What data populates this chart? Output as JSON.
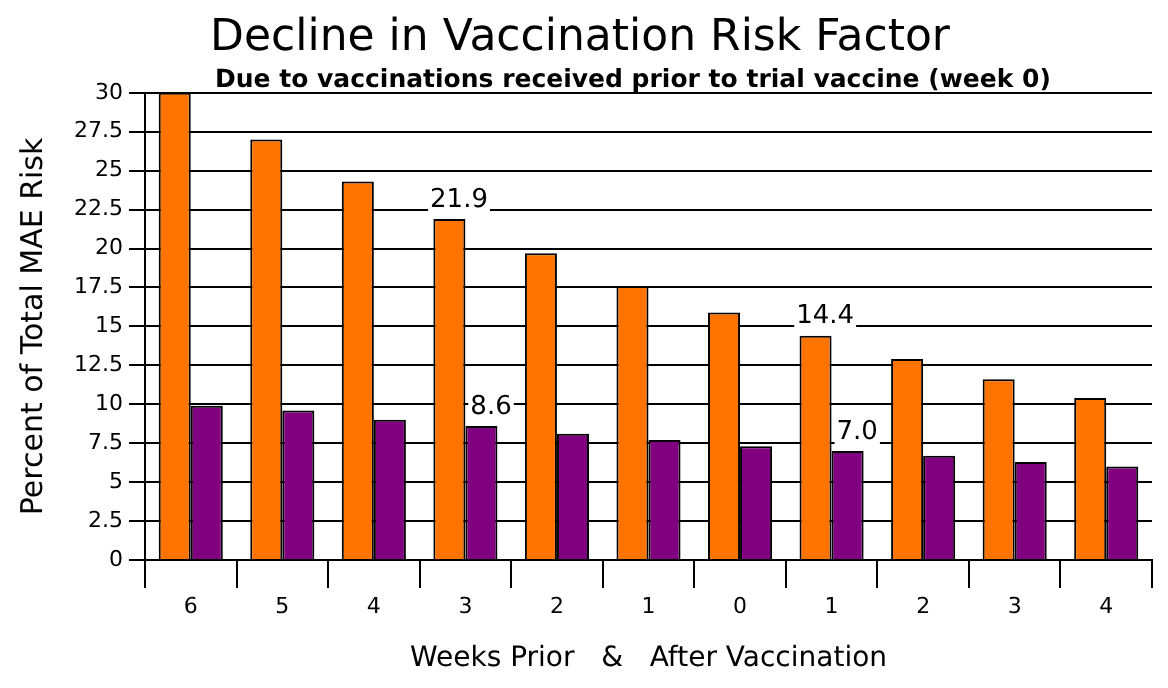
{
  "chart_data": {
    "type": "bar",
    "title": "Decline in Vaccination Risk Factor",
    "subtitle": "Due to vaccinations received prior to trial vaccine (week 0)",
    "xlabel": "Weeks Prior   &   After Vaccination",
    "ylabel": "Percent of Total MAE Risk",
    "categories": [
      "6",
      "5",
      "4",
      "3",
      "2",
      "1",
      "0",
      "1",
      "2",
      "3",
      "4"
    ],
    "series": [
      {
        "color": "#ff7300",
        "values": [
          30,
          27.0,
          24.3,
          21.9,
          19.7,
          17.6,
          15.9,
          14.4,
          12.9,
          11.6,
          10.4
        ],
        "value_labels": [
          null,
          null,
          null,
          "21.9",
          null,
          null,
          null,
          "14.4",
          null,
          null,
          null
        ]
      },
      {
        "color": "#800080",
        "values": [
          9.9,
          9.6,
          9.0,
          8.6,
          8.1,
          7.7,
          7.3,
          7.0,
          6.7,
          6.3,
          6.0
        ],
        "value_labels": [
          null,
          null,
          null,
          "8.6",
          null,
          null,
          null,
          "7.0",
          null,
          null,
          null
        ]
      }
    ],
    "ylim": [
      0,
      30
    ],
    "yticks": [
      0,
      2.5,
      5,
      7.5,
      10,
      12.5,
      15,
      17.5,
      20,
      22.5,
      25,
      27.5,
      30
    ],
    "grid": "y",
    "legend": false
  }
}
